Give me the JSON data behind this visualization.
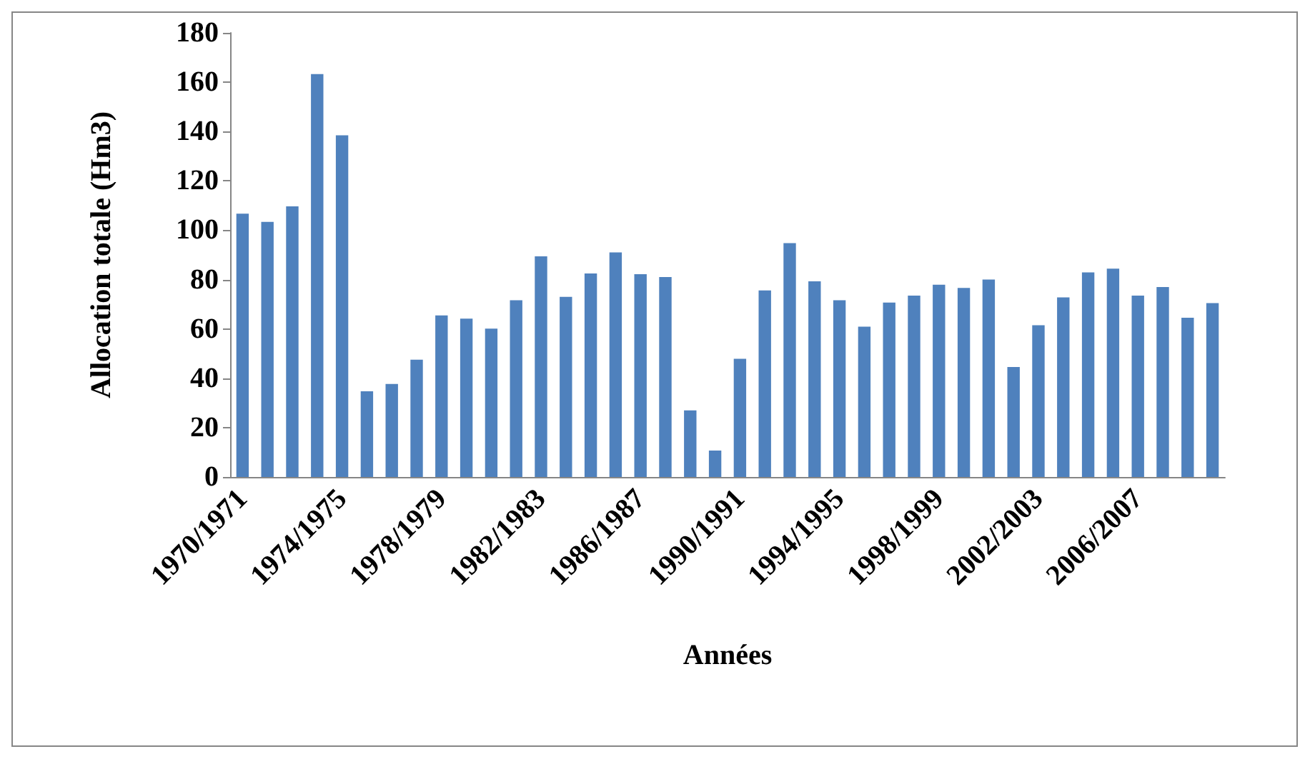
{
  "chart_data": {
    "type": "bar",
    "xlabel": "Années",
    "ylabel": "Allocation totale (Hm3)",
    "categories": [
      "1970/1971",
      null,
      null,
      null,
      "1974/1975",
      null,
      null,
      null,
      "1978/1979",
      null,
      null,
      null,
      "1982/1983",
      null,
      null,
      null,
      "1986/1987",
      null,
      null,
      null,
      "1990/1991",
      null,
      null,
      null,
      "1994/1995",
      null,
      null,
      null,
      "1998/1999",
      null,
      null,
      null,
      "2002/2003",
      null,
      null,
      null,
      "2006/2007",
      null,
      null,
      null
    ],
    "values": [
      106.7,
      103.4,
      109.7,
      163.3,
      138.5,
      34.7,
      37.7,
      47.5,
      65.5,
      64.2,
      60.1,
      71.6,
      89.4,
      73.0,
      82.5,
      91.0,
      82.2,
      81.0,
      27.0,
      10.7,
      47.9,
      75.6,
      94.8,
      79.3,
      71.6,
      60.9,
      70.7,
      73.5,
      77.9,
      76.6,
      80.0,
      44.6,
      61.5,
      72.8,
      82.9,
      84.4,
      73.5,
      77.0,
      64.5,
      70.5
    ],
    "color": "#4f81bd",
    "ylim": [
      0,
      180
    ],
    "yticks": [
      0,
      20,
      40,
      60,
      80,
      100,
      120,
      140,
      160,
      180
    ],
    "grid": false
  }
}
